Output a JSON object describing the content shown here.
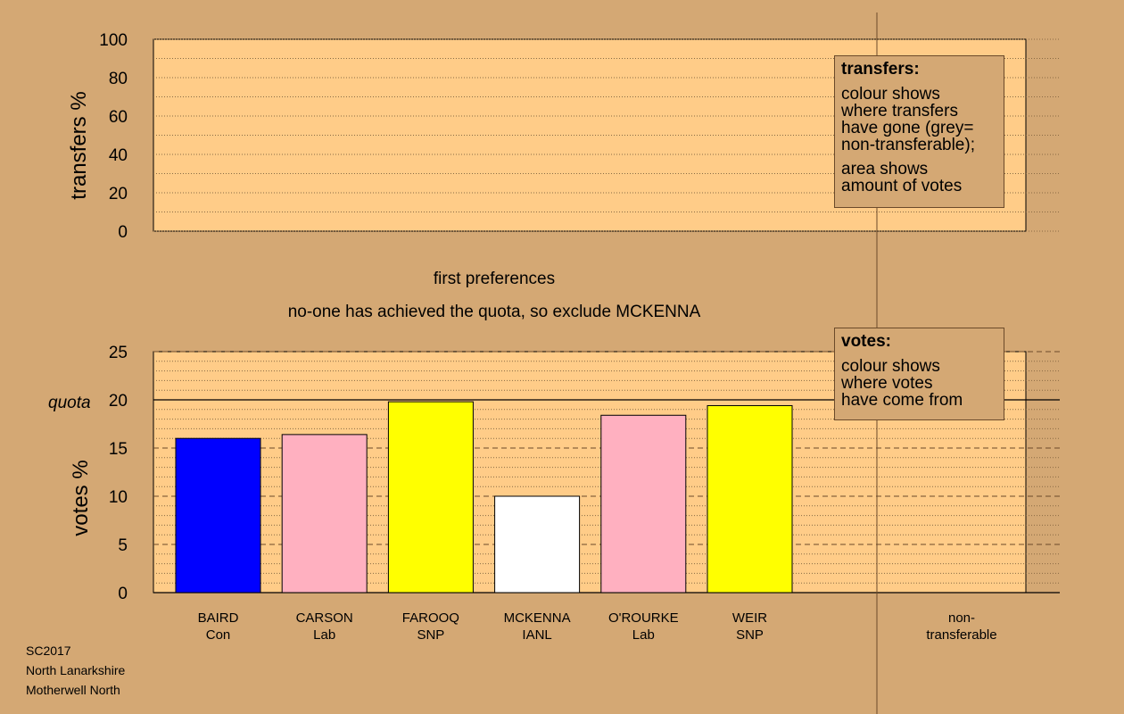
{
  "chart_data": [
    {
      "type": "bar",
      "panel": "transfers",
      "ylabel": "transfers %",
      "ylim": [
        0,
        100
      ],
      "yticks": [
        0,
        20,
        40,
        60,
        80,
        100
      ],
      "series": [],
      "legend": {
        "title": "transfers:",
        "lines": [
          "colour shows\nwhere transfers\nhave gone (grey=\nnon-transferable);",
          "area shows\namount of votes"
        ]
      }
    },
    {
      "type": "bar",
      "panel": "votes",
      "ylabel": "votes %",
      "ylim": [
        0,
        25
      ],
      "yticks": [
        0,
        5,
        10,
        15,
        20,
        25
      ],
      "quota": 20,
      "quota_label": "quota",
      "categories": [
        {
          "name": "BAIRD",
          "party": "Con"
        },
        {
          "name": "CARSON",
          "party": "Lab"
        },
        {
          "name": "FAROOQ",
          "party": "SNP"
        },
        {
          "name": "MCKENNA",
          "party": "IANL"
        },
        {
          "name": "O'ROURKE",
          "party": "Lab"
        },
        {
          "name": "WEIR",
          "party": "SNP"
        }
      ],
      "values": [
        16.0,
        16.4,
        19.8,
        10.0,
        18.4,
        19.4
      ],
      "colors": [
        "#0000ff",
        "#ffb0c0",
        "#ffff00",
        "#ffffff",
        "#ffb0c0",
        "#ffff00"
      ],
      "extra_category": [
        "non-",
        "transferable"
      ],
      "legend": {
        "title": "votes:",
        "lines": [
          "colour shows\nwhere votes\nhave come from"
        ]
      }
    }
  ],
  "captions": {
    "stage": "first preferences",
    "status": "no-one has achieved the quota, so exclude MCKENNA"
  },
  "meta": [
    "SC2017",
    "North Lanarkshire",
    "Motherwell North"
  ],
  "colors": {
    "background": "#d4a874",
    "plot_area": "#ffcc88"
  }
}
